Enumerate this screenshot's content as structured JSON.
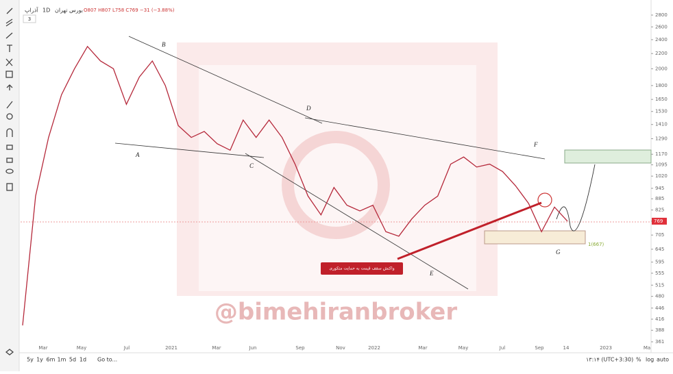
{
  "header": {
    "symbol": "آذراپ",
    "interval": "1D",
    "exchange": "بورس تهران",
    "ohlc": "O807 H807 L758 C769 −31 (−3.88%)",
    "indicator_count": "3"
  },
  "chart_data": {
    "type": "line",
    "color": "#b5283a",
    "log_scale": true,
    "values": [
      400,
      900,
      1300,
      1700,
      2000,
      2300,
      2100,
      2000,
      1600,
      1900,
      2100,
      1800,
      1400,
      1300,
      1350,
      1250,
      1200,
      1450,
      1300,
      1450,
      1300,
      1100,
      900,
      800,
      950,
      850,
      820,
      850,
      720,
      700,
      780,
      850,
      900,
      1100,
      1150,
      1080,
      1100,
      1050,
      960,
      860,
      720,
      840,
      769
    ],
    "ylim": [
      361,
      2800
    ],
    "yticks": [
      361,
      388,
      416,
      446,
      480,
      515,
      555,
      595,
      645,
      705,
      769,
      825,
      885,
      945,
      1020,
      1095,
      1170,
      1290,
      1410,
      1530,
      1650,
      1800,
      2000,
      2200,
      2400,
      2600,
      2800
    ],
    "xaxis_labels": [
      "Mar",
      "May",
      "Jul",
      "2021",
      "Mar",
      "Jun",
      "Sep",
      "Nov",
      "2022",
      "Mar",
      "May",
      "Jul",
      "Sep",
      "14",
      "2023",
      "Ma"
    ],
    "last_price": 769,
    "support_label": "1(667)"
  },
  "annotations": {
    "points": [
      "A",
      "B",
      "C",
      "D",
      "E",
      "F",
      "G"
    ],
    "callout": "واکنش سقف قیمت به حمایت متکوری",
    "watermark": "@bimehiranbroker"
  },
  "footer": {
    "ranges": [
      "5y",
      "1y",
      "6m",
      "1m",
      "5d",
      "1d"
    ],
    "goto": "Go to...",
    "time": "۱۳:۱۴ (UTC+3:30)",
    "percent": "%",
    "log": "log",
    "auto": "auto"
  }
}
